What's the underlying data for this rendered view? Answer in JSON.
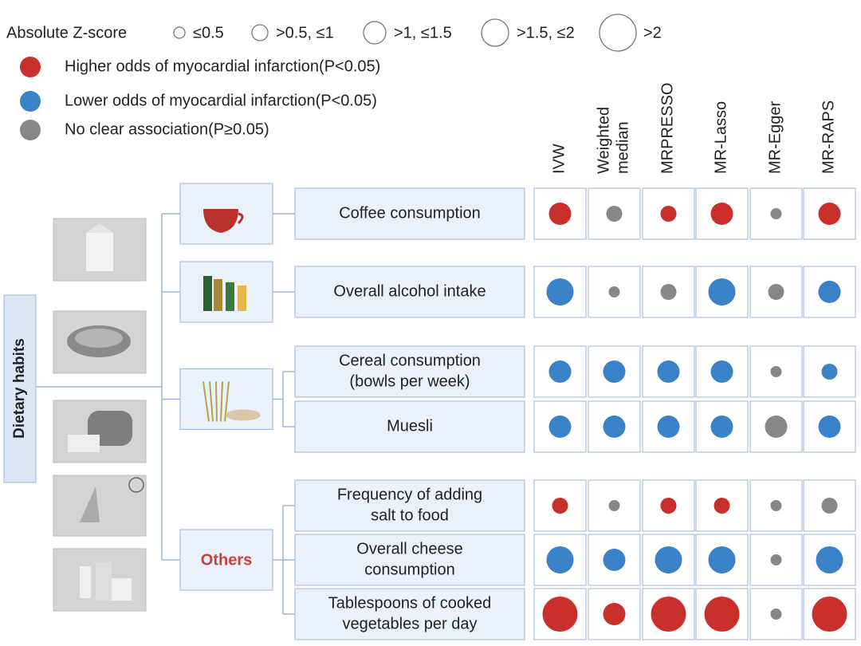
{
  "legend": {
    "title": "Absolute Z-score",
    "sizes": [
      "≤0.5",
      ">0.5, ≤1",
      ">1, ≤1.5",
      ">1.5, ≤2",
      ">2"
    ],
    "associations": [
      {
        "label": "Higher odds of myocardial infarction(P<0.05)",
        "color": "#c9302c"
      },
      {
        "label": "Lower odds of myocardial infarction(P<0.05)",
        "color": "#3a82c8"
      },
      {
        "label": "No clear association(P≥0.05)",
        "color": "#878787"
      }
    ]
  },
  "methods": [
    [
      "IVW"
    ],
    [
      "Weighted",
      "median"
    ],
    [
      "MRPRESSO"
    ],
    [
      "MR-Lasso"
    ],
    [
      "MR-Egger"
    ],
    [
      "MR-RAPS"
    ]
  ],
  "root": "Dietary habits",
  "groups": [
    {
      "rows": [
        {
          "label": [
            "Coffee consumption"
          ],
          "cells": [
            {
              "z": ">1, ≤1.5",
              "association": "Higher odds of myocardial infarction(P<0.05)"
            },
            {
              "z": ">0.5, ≤1",
              "association": "No clear association(P≥0.05)"
            },
            {
              "z": ">0.5, ≤1",
              "association": "Higher odds of myocardial infarction(P<0.05)"
            },
            {
              "z": ">1, ≤1.5",
              "association": "Higher odds of myocardial infarction(P<0.05)"
            },
            {
              "z": "≤0.5",
              "association": "No clear association(P≥0.05)"
            },
            {
              "z": ">1, ≤1.5",
              "association": "Higher odds of myocardial infarction(P<0.05)"
            }
          ]
        }
      ]
    },
    {
      "rows": [
        {
          "label": [
            "Overall alcohol intake"
          ],
          "cells": [
            {
              "z": ">1.5, ≤2",
              "association": "Lower odds of myocardial infarction(P<0.05)"
            },
            {
              "z": "≤0.5",
              "association": "No clear association(P≥0.05)"
            },
            {
              "z": ">0.5, ≤1",
              "association": "No clear association(P≥0.05)"
            },
            {
              "z": ">1.5, ≤2",
              "association": "Lower odds of myocardial infarction(P<0.05)"
            },
            {
              "z": ">0.5, ≤1",
              "association": "No clear association(P≥0.05)"
            },
            {
              "z": ">1, ≤1.5",
              "association": "Lower odds of myocardial infarction(P<0.05)"
            }
          ]
        }
      ]
    },
    {
      "rows": [
        {
          "label": [
            "Cereal consumption",
            "(bowls per week)"
          ],
          "cells": [
            {
              "z": ">1, ≤1.5",
              "association": "Lower odds of myocardial infarction(P<0.05)"
            },
            {
              "z": ">1, ≤1.5",
              "association": "Lower odds of myocardial infarction(P<0.05)"
            },
            {
              "z": ">1, ≤1.5",
              "association": "Lower odds of myocardial infarction(P<0.05)"
            },
            {
              "z": ">1, ≤1.5",
              "association": "Lower odds of myocardial infarction(P<0.05)"
            },
            {
              "z": "≤0.5",
              "association": "No clear association(P≥0.05)"
            },
            {
              "z": ">0.5, ≤1",
              "association": "Lower odds of myocardial infarction(P<0.05)"
            }
          ]
        },
        {
          "label": [
            "Muesli"
          ],
          "cells": [
            {
              "z": ">1, ≤1.5",
              "association": "Lower odds of myocardial infarction(P<0.05)"
            },
            {
              "z": ">1, ≤1.5",
              "association": "Lower odds of myocardial infarction(P<0.05)"
            },
            {
              "z": ">1, ≤1.5",
              "association": "Lower odds of myocardial infarction(P<0.05)"
            },
            {
              "z": ">1, ≤1.5",
              "association": "Lower odds of myocardial infarction(P<0.05)"
            },
            {
              "z": ">1, ≤1.5",
              "association": "No clear association(P≥0.05)"
            },
            {
              "z": ">1, ≤1.5",
              "association": "Lower odds of myocardial infarction(P<0.05)"
            }
          ]
        }
      ]
    },
    {
      "label": "Others",
      "rows": [
        {
          "label": [
            "Frequency of adding",
            "salt to food"
          ],
          "cells": [
            {
              "z": ">0.5, ≤1",
              "association": "Higher odds of myocardial infarction(P<0.05)"
            },
            {
              "z": "≤0.5",
              "association": "No clear association(P≥0.05)"
            },
            {
              "z": ">0.5, ≤1",
              "association": "Higher odds of myocardial infarction(P<0.05)"
            },
            {
              "z": ">0.5, ≤1",
              "association": "Higher odds of myocardial infarction(P<0.05)"
            },
            {
              "z": "≤0.5",
              "association": "No clear association(P≥0.05)"
            },
            {
              "z": ">0.5, ≤1",
              "association": "No clear association(P≥0.05)"
            }
          ]
        },
        {
          "label": [
            "Overall cheese",
            "consumption"
          ],
          "cells": [
            {
              "z": ">1.5, ≤2",
              "association": "Lower odds of myocardial infarction(P<0.05)"
            },
            {
              "z": ">1, ≤1.5",
              "association": "Lower odds of myocardial infarction(P<0.05)"
            },
            {
              "z": ">1.5, ≤2",
              "association": "Lower odds of myocardial infarction(P<0.05)"
            },
            {
              "z": ">1.5, ≤2",
              "association": "Lower odds of myocardial infarction(P<0.05)"
            },
            {
              "z": "≤0.5",
              "association": "No clear association(P≥0.05)"
            },
            {
              "z": ">1.5, ≤2",
              "association": "Lower odds of myocardial infarction(P<0.05)"
            }
          ]
        },
        {
          "label": [
            "Tablespoons of cooked",
            "vegetables per day"
          ],
          "cells": [
            {
              "z": ">2",
              "association": "Higher odds of myocardial infarction(P<0.05)"
            },
            {
              "z": ">1, ≤1.5",
              "association": "Higher odds of myocardial infarction(P<0.05)"
            },
            {
              "z": ">2",
              "association": "Higher odds of myocardial infarction(P<0.05)"
            },
            {
              "z": ">2",
              "association": "Higher odds of myocardial infarction(P<0.05)"
            },
            {
              "z": "≤0.5",
              "association": "No clear association(P≥0.05)"
            },
            {
              "z": ">2",
              "association": "Higher odds of myocardial infarction(P<0.05)"
            }
          ]
        }
      ]
    }
  ]
}
